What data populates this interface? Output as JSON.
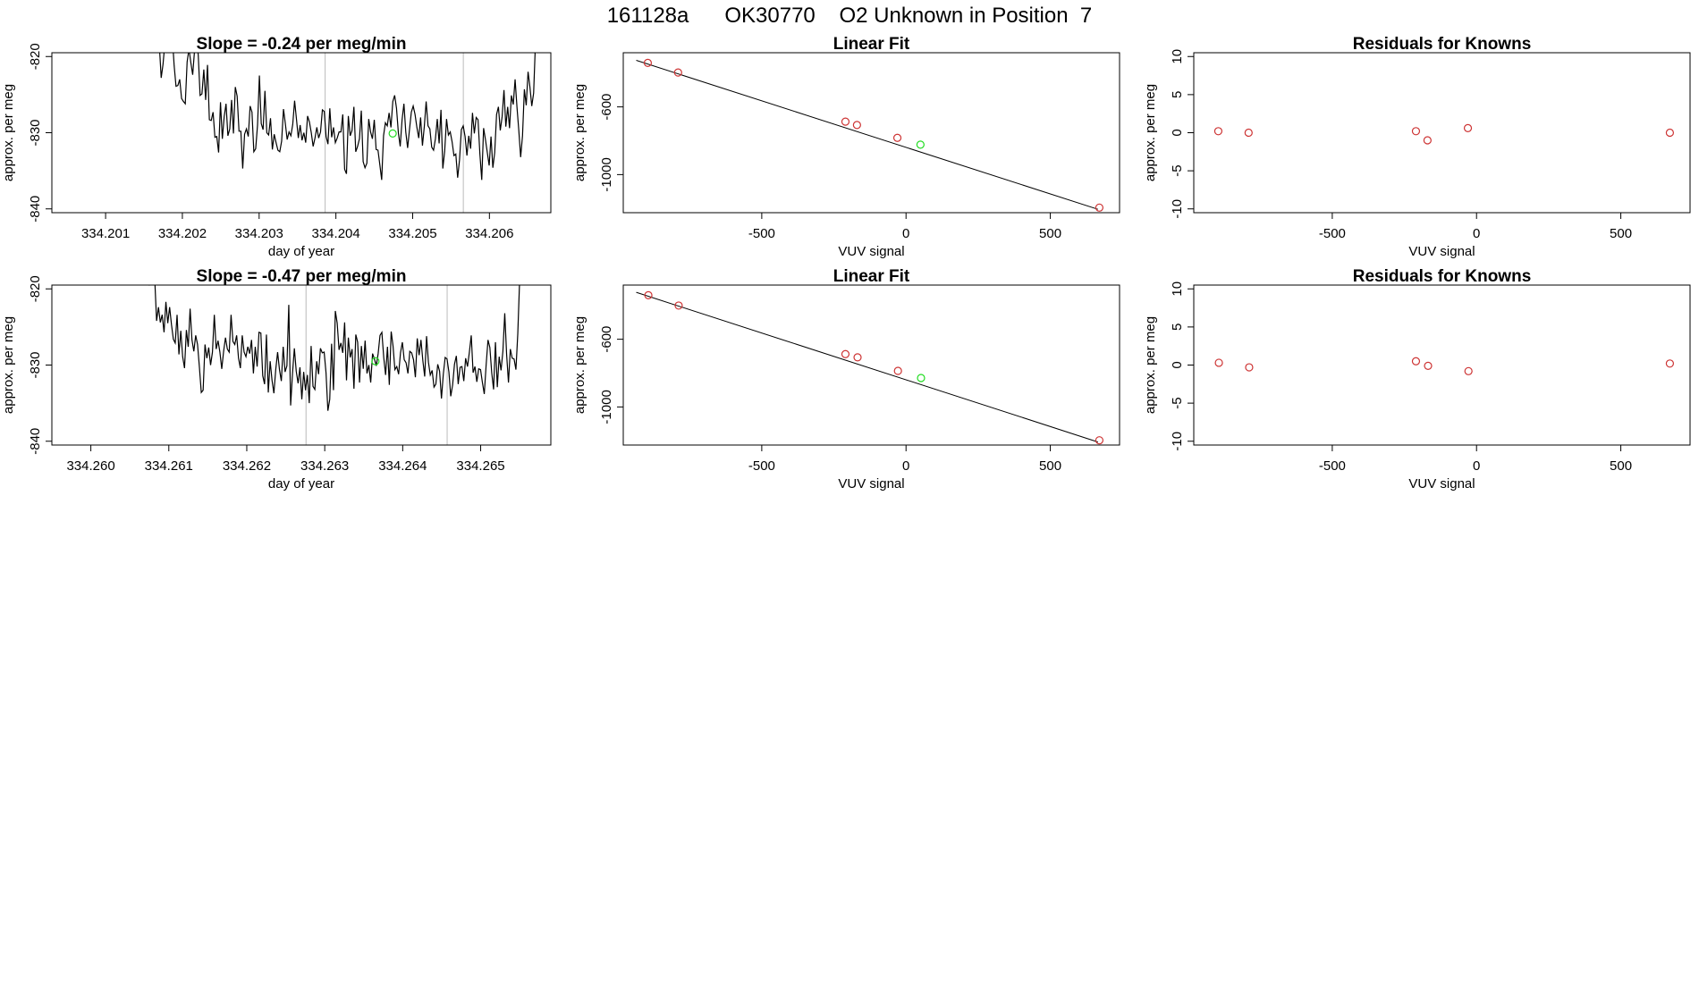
{
  "figure": {
    "title": "161128a      OK30770    O2 Unknown in Position  7"
  },
  "colors": {
    "trace": "#000000",
    "known_point": "#cd3333",
    "unknown_point": "#22dd22",
    "marker_line": "#bbbbbb",
    "fit_line": "#000000"
  },
  "chart_data": [
    {
      "panel": "trace-1",
      "type": "line",
      "title": "Slope =  -0.24  per meg/min",
      "xlabel": "day of year",
      "ylabel": "approx. per meg",
      "xlim": [
        334.2003,
        334.2068
      ],
      "ylim": [
        -840.5,
        -819.5
      ],
      "xticks": [
        "334.201",
        "334.202",
        "334.203",
        "334.204",
        "334.205",
        "334.206"
      ],
      "yticks": [
        "-820",
        "-830",
        "-840"
      ],
      "vlines": [
        334.20386,
        334.20566
      ],
      "x_start": 334.2017,
      "x_end": 334.2066,
      "series": [
        {
          "values": [
            -818.5,
            -822.8,
            -821.0,
            -818.2,
            -817.4,
            -817.0,
            -815.1,
            -817.4,
            -821.2,
            -823.9,
            -823.8,
            -823.0,
            -825.5,
            -825.9,
            -826.2,
            -820.7,
            -819.0,
            -820.8,
            -822.4,
            -819.2,
            -817.4,
            -819.8,
            -825.1,
            -824.9,
            -821.7,
            -825.7,
            -821.1,
            -828.3,
            -828.4,
            -827.3,
            -830.6,
            -830.5,
            -832.6,
            -826.0,
            -830.8,
            -827.9,
            -826.2,
            -830.4,
            -829.5,
            -825.7,
            -830.1,
            -824.0,
            -825.2,
            -829.8,
            -829.8,
            -834.7,
            -830.2,
            -829.5,
            -830.5,
            -826.5,
            -827.3,
            -832.5,
            -832.1,
            -829.0,
            -822.5,
            -828.8,
            -829.6,
            -824.5,
            -830.0,
            -830.3,
            -828.1,
            -832.2,
            -830.2,
            -831.3,
            -832.3,
            -832.5,
            -831.1,
            -826.9,
            -828.8,
            -830.9,
            -829.9,
            -830.4,
            -828.9,
            -825.8,
            -828.2,
            -830.7,
            -829.0,
            -831.0,
            -830.0,
            -831.3,
            -827.8,
            -828.6,
            -830.0,
            -831.8,
            -830.7,
            -829.3,
            -830.7,
            -829.9,
            -827.0,
            -827.2,
            -830.5,
            -831.5,
            -826.8,
            -830.6,
            -829.3,
            -831.3,
            -830.7,
            -829.9,
            -829.9,
            -827.6,
            -834.8,
            -835.4,
            -827.8,
            -830.4,
            -829.7,
            -826.6,
            -832.5,
            -831.8,
            -830.8,
            -827.1,
            -833.8,
            -834.6,
            -834.0,
            -828.2,
            -829.9,
            -830.8,
            -828.3,
            -832.2,
            -832.3,
            -834.2,
            -836.2,
            -830.4,
            -828.7,
            -829.1,
            -827.4,
            -829.3,
            -825.9,
            -825.1,
            -826.8,
            -830.0,
            -831.8,
            -828.3,
            -826.2,
            -829.9,
            -832.0,
            -829.6,
            -827.3,
            -826.5,
            -827.6,
            -829.3,
            -830.7,
            -828.0,
            -831.7,
            -829.2,
            -825.9,
            -829.1,
            -829.5,
            -831.9,
            -832.3,
            -830.8,
            -828.2,
            -831.4,
            -827.0,
            -834.7,
            -832.4,
            -828.2,
            -830.3,
            -829.9,
            -831.2,
            -833.0,
            -832.8,
            -835.9,
            -833.6,
            -829.6,
            -829.1,
            -830.5,
            -833.0,
            -830.4,
            -832.1,
            -827.4,
            -830.1,
            -828.0,
            -828.3,
            -832.8,
            -836.2,
            -829.4,
            -830.9,
            -832.6,
            -834.3,
            -830.5,
            -834.6,
            -832.6,
            -827.6,
            -826.6,
            -829.7,
            -827.9,
            -824.4,
            -829.2,
            -826.6,
            -829.4,
            -825.1,
            -826.3,
            -823.0,
            -826.6,
            -829.7,
            -833.2,
            -830.4,
            -824.3,
            -826.4,
            -822.0,
            -824.0,
            -826.5,
            -824.8,
            -818.1
          ]
        }
      ],
      "unknown_point": {
        "x": 334.20474,
        "y": -830.1
      }
    },
    {
      "panel": "fit-1",
      "type": "scatter",
      "title": "Linear Fit",
      "xlabel": "VUV signal",
      "ylabel": "approx. per meg",
      "xlim": [
        -980,
        740
      ],
      "ylim": [
        -1225,
        -280
      ],
      "xticks": [
        -500,
        0,
        500
      ],
      "yticks": [
        -600,
        -1000
      ],
      "fit_line": [
        [
          -935,
          -325
        ],
        [
          665,
          -1205
        ]
      ],
      "knowns": [
        [
          -895,
          -340
        ],
        [
          -790,
          -397
        ],
        [
          -210,
          -687
        ],
        [
          -170,
          -707
        ],
        [
          -30,
          -783
        ],
        [
          670,
          -1195
        ]
      ],
      "unknown": [
        50,
        -823
      ]
    },
    {
      "panel": "resid-1",
      "type": "scatter",
      "title": "Residuals for Knowns",
      "xlabel": "VUV signal",
      "ylabel": "approx. per meg",
      "xlim": [
        -980,
        740
      ],
      "ylim": [
        -10.5,
        10.5
      ],
      "xticks": [
        -500,
        0,
        500
      ],
      "yticks": [
        10,
        5,
        0,
        -5,
        -10
      ],
      "knowns": [
        [
          -895,
          0.2
        ],
        [
          -790,
          0.0
        ],
        [
          -210,
          0.2
        ],
        [
          -170,
          -1.0
        ],
        [
          -30,
          0.6
        ],
        [
          670,
          0.0
        ]
      ]
    },
    {
      "panel": "trace-2",
      "type": "line",
      "title": "Slope =  -0.47  per meg/min",
      "xlabel": "day of year",
      "ylabel": "approx. per meg",
      "xlim": [
        334.2595,
        334.2659
      ],
      "ylim": [
        -840.5,
        -819.5
      ],
      "xticks": [
        "334.260",
        "334.261",
        "334.262",
        "334.263",
        "334.264",
        "334.265"
      ],
      "yticks": [
        "-820",
        "-830",
        "-840"
      ],
      "vlines": [
        334.26276,
        334.26457
      ],
      "x_start": 334.2607,
      "x_end": 334.2655,
      "series": [
        {
          "values": [
            -818.4,
            -819.4,
            -819.5,
            -819.0,
            -818.2,
            -818.7,
            -824.2,
            -822.4,
            -824.4,
            -823.4,
            -825.7,
            -821.7,
            -824.5,
            -822.4,
            -824.7,
            -826.6,
            -827.1,
            -823.4,
            -828.6,
            -825.5,
            -828.9,
            -830.4,
            -825.4,
            -827.6,
            -822.6,
            -826.7,
            -828.2,
            -826.1,
            -827.3,
            -830.3,
            -833.6,
            -833.3,
            -827.3,
            -829.1,
            -827.7,
            -830.0,
            -828.3,
            -823.4,
            -827.9,
            -826.8,
            -828.3,
            -830.5,
            -828.2,
            -826.4,
            -827.9,
            -828.3,
            -823.4,
            -826.9,
            -827.3,
            -826.1,
            -829.1,
            -830.4,
            -826.1,
            -828.3,
            -828.9,
            -827.6,
            -828.5,
            -826.7,
            -831.1,
            -827.6,
            -830.2,
            -825.7,
            -825.8,
            -831.4,
            -832.5,
            -826.0,
            -833.6,
            -829.5,
            -832.0,
            -833.7,
            -830.6,
            -828.3,
            -830.6,
            -832.1,
            -827.6,
            -830.9,
            -830.1,
            -822.1,
            -835.3,
            -831.1,
            -827.8,
            -830.8,
            -832.4,
            -830.3,
            -834.5,
            -830.9,
            -833.3,
            -831.3,
            -835.0,
            -827.5,
            -832.8,
            -833.2,
            -829.5,
            -831.2,
            -827.8,
            -828.4,
            -828.3,
            -831.0,
            -836.0,
            -834.5,
            -827.2,
            -833.3,
            -822.9,
            -824.5,
            -828.0,
            -827.1,
            -828.4,
            -824.4,
            -832.0,
            -826.4,
            -829.0,
            -827.9,
            -833.1,
            -826.0,
            -827.0,
            -832.3,
            -827.5,
            -830.5,
            -826.8,
            -831.1,
            -830.0,
            -832.3,
            -828.5,
            -829.2,
            -830.1,
            -828.5,
            -826.1,
            -825.7,
            -829.0,
            -831.3,
            -827.6,
            -832.6,
            -825.6,
            -827.5,
            -830.6,
            -830.2,
            -831.2,
            -828.4,
            -827.0,
            -829.3,
            -829.7,
            -831.1,
            -828.2,
            -828.4,
            -829.3,
            -831.6,
            -826.5,
            -828.7,
            -826.7,
            -829.4,
            -831.5,
            -826.2,
            -829.6,
            -831.3,
            -830.7,
            -832.9,
            -832.5,
            -829.9,
            -830.8,
            -834.4,
            -831.2,
            -829.0,
            -829.2,
            -830.9,
            -834.1,
            -832.6,
            -829.9,
            -828.8,
            -832.5,
            -830.3,
            -830.2,
            -832.1,
            -829.1,
            -830.2,
            -828.3,
            -826.1,
            -831.0,
            -830.2,
            -832.2,
            -830.5,
            -830.6,
            -832.3,
            -833.8,
            -830.0,
            -826.7,
            -827.7,
            -831.0,
            -833.2,
            -827.0,
            -832.9,
            -828.9,
            -830.7,
            -828.2,
            -823.2,
            -828.6,
            -832.3,
            -827.9,
            -829.1,
            -829.2,
            -830.6,
            -825.9,
            -818.8
          ]
        }
      ],
      "unknown_point": {
        "x": 334.26365,
        "y": -829.5
      }
    },
    {
      "panel": "fit-2",
      "type": "scatter",
      "title": "Linear Fit",
      "xlabel": "VUV signal",
      "ylabel": "approx. per meg",
      "xlim": [
        -980,
        740
      ],
      "ylim": [
        -1225,
        -280
      ],
      "xticks": [
        -500,
        0,
        500
      ],
      "yticks": [
        -600,
        -1000
      ],
      "fit_line": [
        [
          -935,
          -323
        ],
        [
          665,
          -1207
        ]
      ],
      "knowns": [
        [
          -893,
          -340
        ],
        [
          -788,
          -401
        ],
        [
          -210,
          -688
        ],
        [
          -168,
          -707
        ],
        [
          -28,
          -787
        ],
        [
          670,
          -1197
        ]
      ],
      "unknown": [
        52,
        -829
      ]
    },
    {
      "panel": "resid-2",
      "type": "scatter",
      "title": "Residuals for Knowns",
      "xlabel": "VUV signal",
      "ylabel": "approx. per meg",
      "xlim": [
        -980,
        740
      ],
      "ylim": [
        -10.5,
        10.5
      ],
      "xticks": [
        -500,
        0,
        500
      ],
      "yticks": [
        10,
        5,
        0,
        -5,
        -10
      ],
      "knowns": [
        [
          -893,
          0.3
        ],
        [
          -788,
          -0.3
        ],
        [
          -210,
          0.5
        ],
        [
          -168,
          -0.1
        ],
        [
          -28,
          -0.8
        ],
        [
          670,
          0.2
        ]
      ]
    }
  ]
}
